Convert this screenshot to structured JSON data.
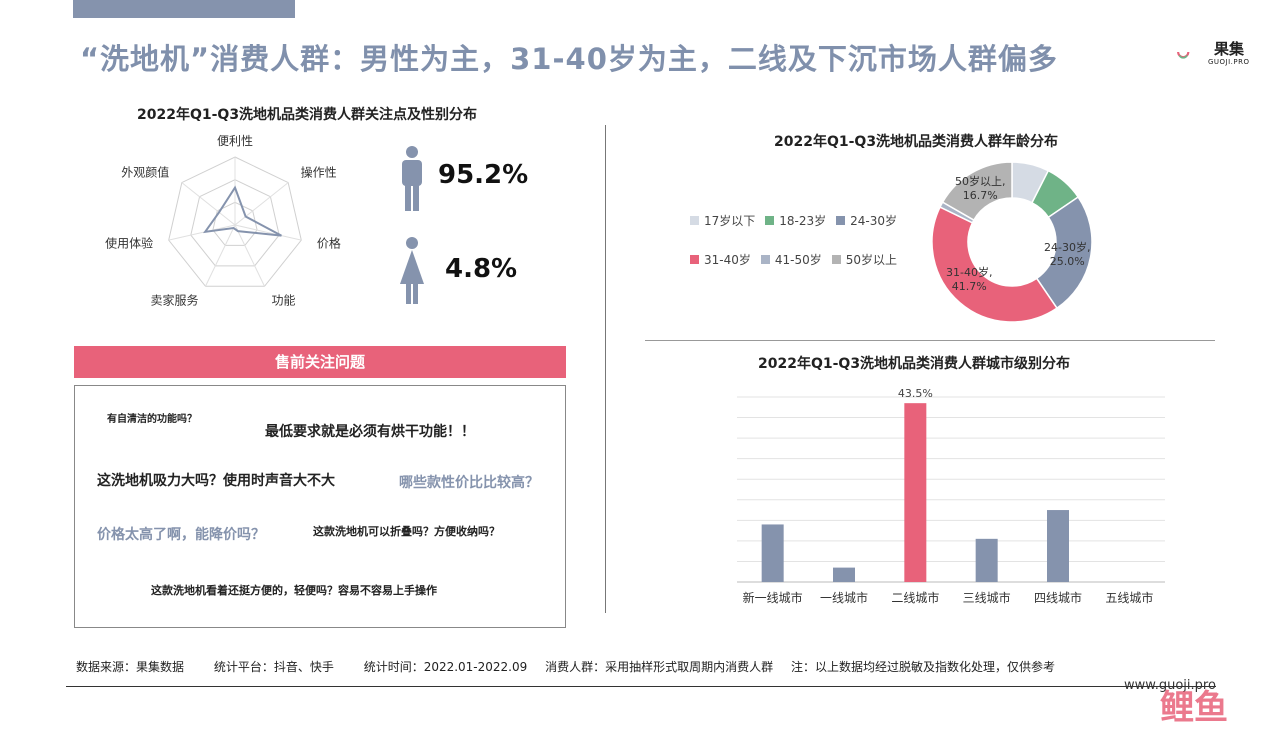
{
  "page": {
    "title": "“洗地机”消费人群：男性为主，31-40岁为主，二线及下沉市场人群偏多",
    "logo_text": "果集",
    "logo_sub": "GUOJI.PRO"
  },
  "radar": {
    "title": "2022年Q1-Q3洗地机品类消费人群关注点及性别分布",
    "labels": [
      "便利性",
      "操作性",
      "价格",
      "功能",
      "卖家服务",
      "使用体验",
      "外观颜值"
    ],
    "values": [
      0.55,
      0.2,
      0.7,
      0.1,
      0.05,
      0.45,
      0.3
    ]
  },
  "gender": {
    "male_pct": "95.2%",
    "female_pct": "4.8%",
    "male_icon": "male-icon",
    "female_icon": "female-icon"
  },
  "presale": {
    "header": "售前关注问题",
    "questions": [
      "有自清洁的功能吗？",
      "最低要求就是必须有烘干功能！！",
      "这洗地机吸力大吗？使用时声音大不大",
      "哪些款性价比比较高？",
      "价格太高了啊，能降价吗？",
      "这款洗地机可以折叠吗？方便收纳吗？",
      "这款洗地机看着还挺方便的，轻便吗？容易不容易上手操作"
    ]
  },
  "chart_data": [
    {
      "type": "pie",
      "title": "2022年Q1-Q3洗地机品类消费人群年龄分布",
      "legend_position": "left",
      "categories": [
        "17岁以下",
        "18-23岁",
        "24-30岁",
        "31-40岁",
        "41-50岁",
        "50岁以上"
      ],
      "values": [
        7.5,
        8.0,
        25.0,
        41.7,
        1.1,
        16.7
      ],
      "colors": [
        "#d5dbe4",
        "#6fb387",
        "#8593ad",
        "#e8627a",
        "#aab4c6",
        "#b3b3b3"
      ],
      "data_labels": [
        {
          "name": "50岁以上,",
          "value": "16.7%"
        },
        {
          "name": "24-30岁,",
          "value": "25.0%"
        },
        {
          "name": "31-40岁,",
          "value": "41.7%"
        }
      ]
    },
    {
      "type": "bar",
      "title": "2022年Q1-Q3洗地机品类消费人群城市级别分布",
      "categories": [
        "新一线城市",
        "一线城市",
        "二线城市",
        "三线城市",
        "四线城市",
        "五线城市"
      ],
      "values": [
        14.0,
        3.5,
        43.5,
        10.5,
        17.5,
        0.0
      ],
      "value_labels": [
        "",
        "",
        "43.5%",
        "",
        "",
        ""
      ],
      "colors": [
        "#8593ad",
        "#8593ad",
        "#e8627a",
        "#8593ad",
        "#8593ad",
        "#8593ad"
      ],
      "ylim": [
        0,
        45
      ],
      "grid": true
    }
  ],
  "footer": {
    "source": "数据来源：果集数据",
    "platform": "统计平台：抖音、快手",
    "time": "统计时间：2022.01-2022.09",
    "audience": "消费人群：采用抽样形式取周期内消费人群",
    "note": "注：以上数据均经过脱敏及指数化处理，仅供参考",
    "url": "www.guoji.pro",
    "watermark": "鲤鱼"
  }
}
